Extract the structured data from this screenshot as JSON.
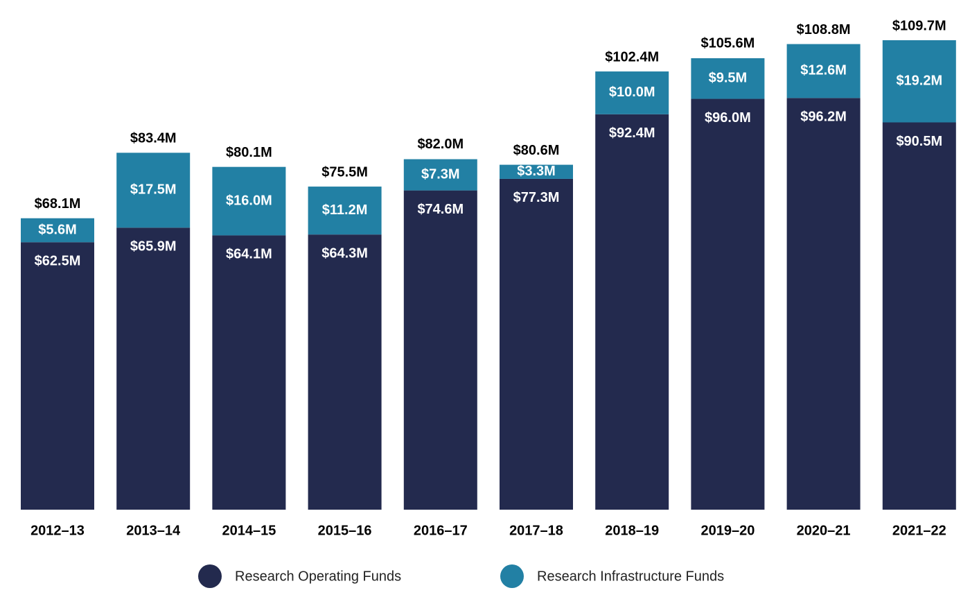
{
  "chart_data": {
    "type": "stacked_bar",
    "categories": [
      "2012–13",
      "2013–14",
      "2014–15",
      "2015–16",
      "2016–17",
      "2017–18",
      "2018–19",
      "2019–20",
      "2020–21",
      "2021–22"
    ],
    "series": [
      {
        "name": "Research Operating Funds",
        "color": "#232a4e",
        "values": [
          62.5,
          65.9,
          64.1,
          64.3,
          74.6,
          77.3,
          92.4,
          96.0,
          96.2,
          90.5
        ],
        "value_labels": [
          "$62.5M",
          "$65.9M",
          "$64.1M",
          "$64.3M",
          "$74.6M",
          "$77.3M",
          "$92.4M",
          "$96.0M",
          "$96.2M",
          "$90.5M"
        ]
      },
      {
        "name": "Research Infrastructure Funds",
        "color": "#2280a4",
        "values": [
          5.6,
          17.5,
          16.0,
          11.2,
          7.3,
          3.3,
          10.0,
          9.5,
          12.6,
          19.2
        ],
        "value_labels": [
          "$5.6M",
          "$17.5M",
          "$16.0M",
          "$11.2M",
          "$7.3M",
          "$3.3M",
          "$10.0M",
          "$9.5M",
          "$12.6M",
          "$19.2M"
        ]
      }
    ],
    "totals": {
      "values": [
        68.1,
        83.4,
        80.1,
        75.5,
        82.0,
        80.6,
        102.4,
        105.6,
        108.8,
        109.7
      ],
      "value_labels": [
        "$68.1M",
        "$83.4M",
        "$80.1M",
        "$75.5M",
        "$82.0M",
        "$80.6M",
        "$102.4M",
        "$105.6M",
        "$108.8M",
        "$109.7M"
      ]
    },
    "legend": "bottom"
  }
}
